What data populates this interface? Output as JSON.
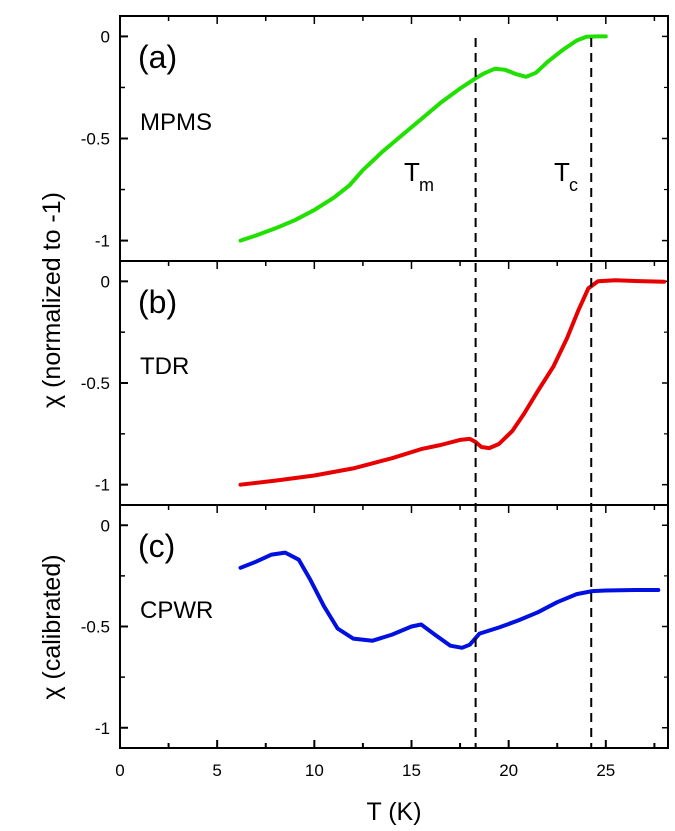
{
  "chart_data": {
    "type": "line",
    "xlabel": "T (K)",
    "xlim": [
      0,
      28.2
    ],
    "x_ticks": [
      "0",
      "5",
      "10",
      "15",
      "20",
      "25"
    ],
    "shared_ylabel": "χ (normalized to -1)",
    "markers": [
      {
        "name": "T",
        "sub": "m",
        "x": 18.3
      },
      {
        "name": "T",
        "sub": "c",
        "x": 24.25
      }
    ],
    "panels": [
      {
        "tag": "(a)",
        "method": "MPMS",
        "ylim": [
          -1.1,
          0.1
        ],
        "y_ticks": [
          "0",
          "-0.5",
          "-1"
        ],
        "color": "#20e000",
        "series": [
          {
            "values": [
              [
                6.2,
                -1.0
              ],
              [
                7,
                -0.975
              ],
              [
                8,
                -0.94
              ],
              [
                9,
                -0.9
              ],
              [
                10,
                -0.85
              ],
              [
                11,
                -0.79
              ],
              [
                11.8,
                -0.73
              ],
              [
                12.5,
                -0.655
              ],
              [
                13.5,
                -0.565
              ],
              [
                14.5,
                -0.485
              ],
              [
                15.5,
                -0.405
              ],
              [
                16.5,
                -0.325
              ],
              [
                17.5,
                -0.255
              ],
              [
                18.3,
                -0.205
              ],
              [
                18.8,
                -0.178
              ],
              [
                19.3,
                -0.158
              ],
              [
                19.8,
                -0.163
              ],
              [
                20.4,
                -0.185
              ],
              [
                20.9,
                -0.198
              ],
              [
                21.4,
                -0.178
              ],
              [
                22,
                -0.125
              ],
              [
                22.8,
                -0.065
              ],
              [
                23.5,
                -0.02
              ],
              [
                24,
                -0.002
              ],
              [
                24.5,
                0.0
              ],
              [
                25,
                0.0
              ]
            ]
          }
        ]
      },
      {
        "tag": "(b)",
        "method": "TDR",
        "ylim": [
          -1.1,
          0.1
        ],
        "y_ticks": [
          "0",
          "-0.5",
          "-1"
        ],
        "color": "#e80000",
        "series": [
          {
            "values": [
              [
                6.2,
                -1.0
              ],
              [
                8,
                -0.98
              ],
              [
                10,
                -0.955
              ],
              [
                12,
                -0.92
              ],
              [
                14,
                -0.87
              ],
              [
                15.5,
                -0.825
              ],
              [
                16.5,
                -0.805
              ],
              [
                17.5,
                -0.78
              ],
              [
                18,
                -0.775
              ],
              [
                18.3,
                -0.79
              ],
              [
                18.6,
                -0.815
              ],
              [
                19,
                -0.82
              ],
              [
                19.5,
                -0.8
              ],
              [
                20.2,
                -0.735
              ],
              [
                20.8,
                -0.65
              ],
              [
                21.5,
                -0.54
              ],
              [
                22.3,
                -0.42
              ],
              [
                23,
                -0.28
              ],
              [
                23.6,
                -0.14
              ],
              [
                24.1,
                -0.035
              ],
              [
                24.6,
                0.0
              ],
              [
                25.5,
                0.005
              ],
              [
                27,
                0.0
              ],
              [
                28,
                -0.002
              ]
            ]
          }
        ]
      },
      {
        "tag": "(c)",
        "method": "CPWR",
        "ylabel": "χ (calibrated)",
        "ylim": [
          -1.1,
          0.1
        ],
        "y_ticks": [
          "0",
          "-0.5",
          "-1"
        ],
        "color": "#0010e0",
        "series": [
          {
            "values": [
              [
                6.2,
                -0.21
              ],
              [
                7,
                -0.18
              ],
              [
                7.8,
                -0.145
              ],
              [
                8.5,
                -0.135
              ],
              [
                9.2,
                -0.17
              ],
              [
                9.8,
                -0.27
              ],
              [
                10.5,
                -0.4
              ],
              [
                11.2,
                -0.51
              ],
              [
                12,
                -0.56
              ],
              [
                13,
                -0.57
              ],
              [
                14,
                -0.54
              ],
              [
                15,
                -0.5
              ],
              [
                15.5,
                -0.49
              ],
              [
                16.2,
                -0.54
              ],
              [
                17,
                -0.595
              ],
              [
                17.6,
                -0.605
              ],
              [
                18,
                -0.59
              ],
              [
                18.5,
                -0.535
              ],
              [
                19.5,
                -0.505
              ],
              [
                20.5,
                -0.47
              ],
              [
                21.5,
                -0.43
              ],
              [
                22.5,
                -0.38
              ],
              [
                23.5,
                -0.34
              ],
              [
                24.3,
                -0.325
              ],
              [
                25,
                -0.322
              ],
              [
                26.5,
                -0.32
              ],
              [
                27.7,
                -0.32
              ]
            ]
          }
        ]
      }
    ]
  }
}
